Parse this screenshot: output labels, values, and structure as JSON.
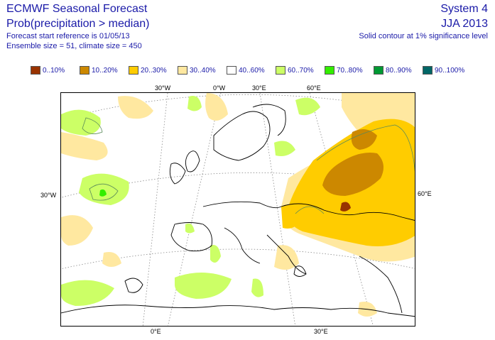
{
  "header": {
    "line1": "ECMWF Seasonal Forecast",
    "line2": "Prob(precipitation > median)",
    "line3": "Forecast start reference is 01/05/13",
    "line4": "Ensemble size = 51, climate size = 450",
    "system": "System 4",
    "season": "JJA 2013",
    "contour_note": "Solid contour at 1% significance level"
  },
  "legend": [
    {
      "label": "0..10%",
      "color": "#993300"
    },
    {
      "label": "10..20%",
      "color": "#cc8800"
    },
    {
      "label": "20..30%",
      "color": "#ffcc00"
    },
    {
      "label": "30..40%",
      "color": "#ffe8a0"
    },
    {
      "label": "40..60%",
      "color": "#ffffff"
    },
    {
      "label": "60..70%",
      "color": "#ccff66"
    },
    {
      "label": "70..80%",
      "color": "#33ee00"
    },
    {
      "label": "80..90%",
      "color": "#009933"
    },
    {
      "label": "90..100%",
      "color": "#006666"
    }
  ],
  "geo_labels": {
    "top_30w": "30°W",
    "top_0w": "0°W",
    "top_30e": "30°E",
    "top_60e": "60°E",
    "left_30w": "30°W",
    "right_60e": "60°E",
    "bottom_0e": "0°E",
    "bottom_30e": "30°E"
  }
}
